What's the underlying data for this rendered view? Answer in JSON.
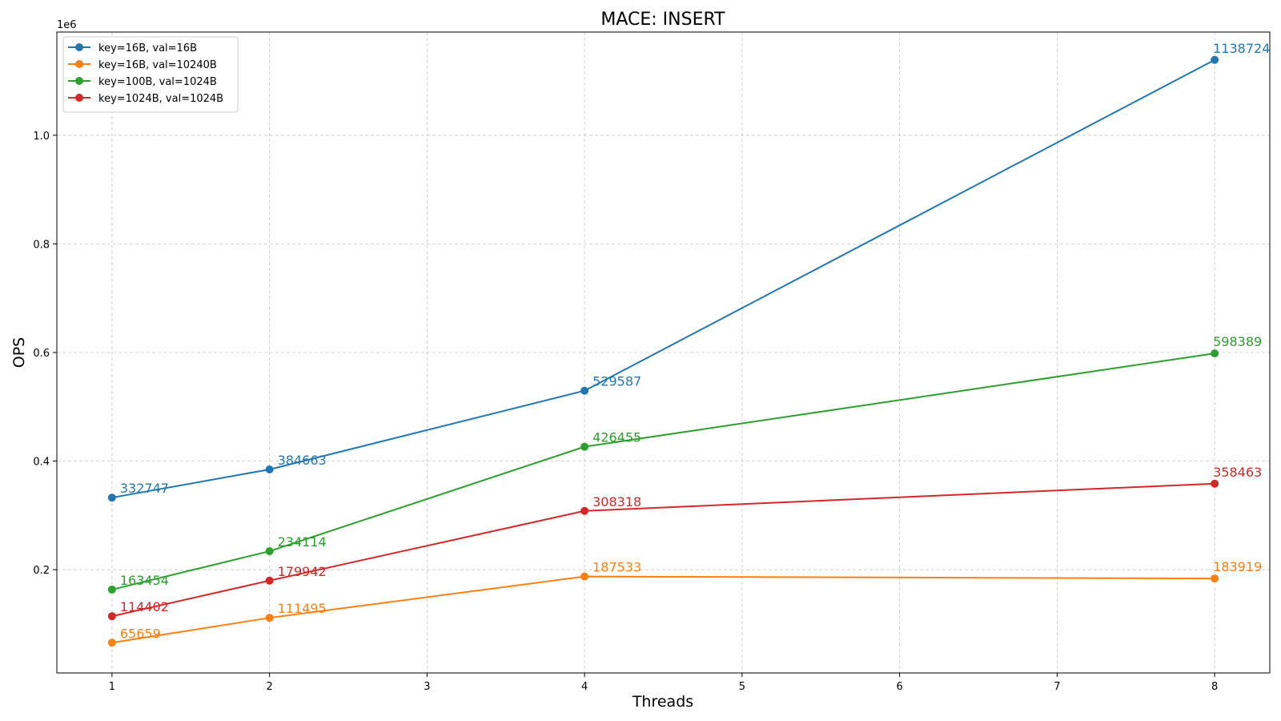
{
  "chart_data": {
    "type": "line",
    "title": "MACE: INSERT",
    "xlabel": "Threads",
    "ylabel": "OPS",
    "y_offset_label": "1e6",
    "x": [
      1,
      2,
      4,
      8
    ],
    "xlim": [
      0.65,
      8.35
    ],
    "ylim": [
      10000,
      1190000
    ],
    "x_ticks": [
      1,
      2,
      3,
      4,
      5,
      6,
      7,
      8
    ],
    "y_ticks": [
      200000,
      400000,
      600000,
      800000,
      1000000
    ],
    "y_tick_labels": [
      "0.2",
      "0.4",
      "0.6",
      "0.8",
      "1.0"
    ],
    "grid": true,
    "legend_position": "top-left",
    "series": [
      {
        "name": "key=16B, val=16B",
        "color": "#1f77b4",
        "values": [
          332747,
          384663,
          529587,
          1138724
        ]
      },
      {
        "name": "key=16B, val=10240B",
        "color": "#ff7f0e",
        "values": [
          65659,
          111495,
          187533,
          183919
        ]
      },
      {
        "name": "key=100B, val=1024B",
        "color": "#2ca02c",
        "values": [
          163454,
          234114,
          426455,
          598389
        ]
      },
      {
        "name": "key=1024B, val=1024B",
        "color": "#d62728",
        "values": [
          114402,
          179942,
          308318,
          358463
        ]
      }
    ]
  }
}
